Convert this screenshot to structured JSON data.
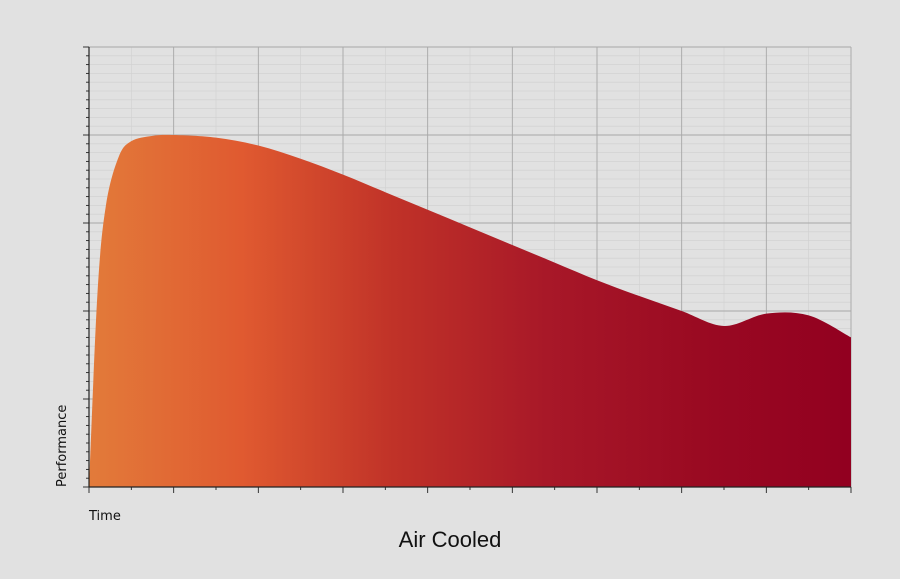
{
  "chart_data": {
    "type": "area",
    "title": "Air Cooled",
    "xlabel": "Time",
    "ylabel": "Performance",
    "xlim": [
      0,
      9
    ],
    "ylim": [
      0,
      5
    ],
    "grid": true,
    "x": [
      0,
      0.1,
      0.2,
      0.35,
      0.5,
      0.75,
      1.0,
      1.5,
      2.0,
      2.5,
      3.0,
      3.5,
      4.0,
      4.5,
      5.0,
      5.5,
      6.0,
      6.5,
      7.0,
      7.5,
      8.0,
      8.5,
      9.0
    ],
    "values": [
      0,
      2.2,
      3.2,
      3.75,
      3.93,
      3.99,
      4.0,
      3.97,
      3.88,
      3.73,
      3.55,
      3.35,
      3.15,
      2.95,
      2.75,
      2.55,
      2.35,
      2.17,
      2.0,
      1.83,
      1.97,
      1.95,
      1.7
    ],
    "gradient_colors": [
      "#e27b3a",
      "#e05a30",
      "#c03228",
      "#a81828",
      "#9a0a22",
      "#920020"
    ]
  }
}
